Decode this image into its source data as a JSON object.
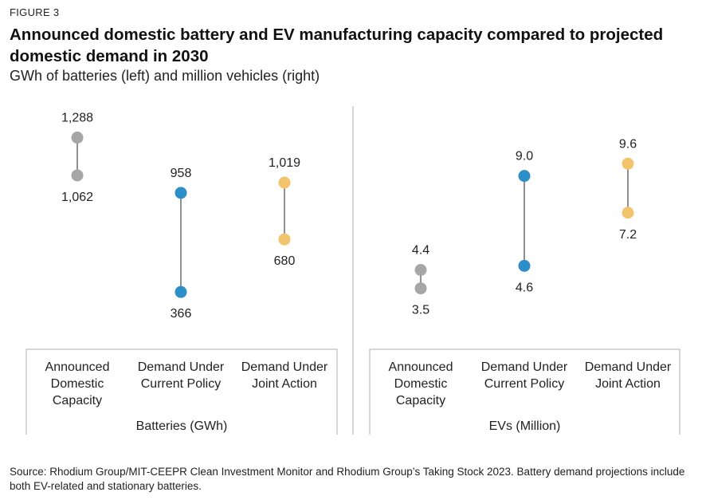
{
  "figure_label": "FIGURE 3",
  "title": "Announced domestic battery and EV manufacturing capacity compared to projected domestic demand in 2030",
  "subtitle": "GWh of batteries (left) and million vehicles (right)",
  "source": "Source: Rhodium Group/MIT-CEEPR Clean Investment Monitor and Rhodium Group’s Taking Stock 2023. Battery demand projections include both EV-related and stationary batteries.",
  "colors": {
    "gray": "#a6a6a6",
    "blue": "#2e8fc8",
    "gold": "#f2c46d",
    "line": "#222222",
    "axis": "#bfbfbf"
  },
  "chart_data": [
    {
      "type": "dumbbell",
      "group_label": "Batteries (GWh)",
      "categories": [
        "Announced\nDomestic\nCapacity",
        "Demand Under\nCurrent Policy",
        "Demand Under\nJoint Action"
      ],
      "colors": [
        "gray",
        "blue",
        "gold"
      ],
      "low": [
        1062,
        366,
        680
      ],
      "high": [
        1288,
        958,
        1019
      ],
      "low_labels": [
        "1,062",
        "366",
        "680"
      ],
      "high_labels": [
        "1,288",
        "958",
        "1,019"
      ]
    },
    {
      "type": "dumbbell",
      "group_label": "EVs (Million)",
      "categories": [
        "Announced\nDomestic\nCapacity",
        "Demand Under\nCurrent Policy",
        "Demand Under\nJoint Action"
      ],
      "colors": [
        "gray",
        "blue",
        "gold"
      ],
      "low": [
        3.5,
        4.6,
        7.2
      ],
      "high": [
        4.4,
        9.0,
        9.6
      ],
      "low_labels": [
        "3.5",
        "4.6",
        "7.2"
      ],
      "high_labels": [
        "4.4",
        "9.0",
        "9.6"
      ]
    }
  ]
}
